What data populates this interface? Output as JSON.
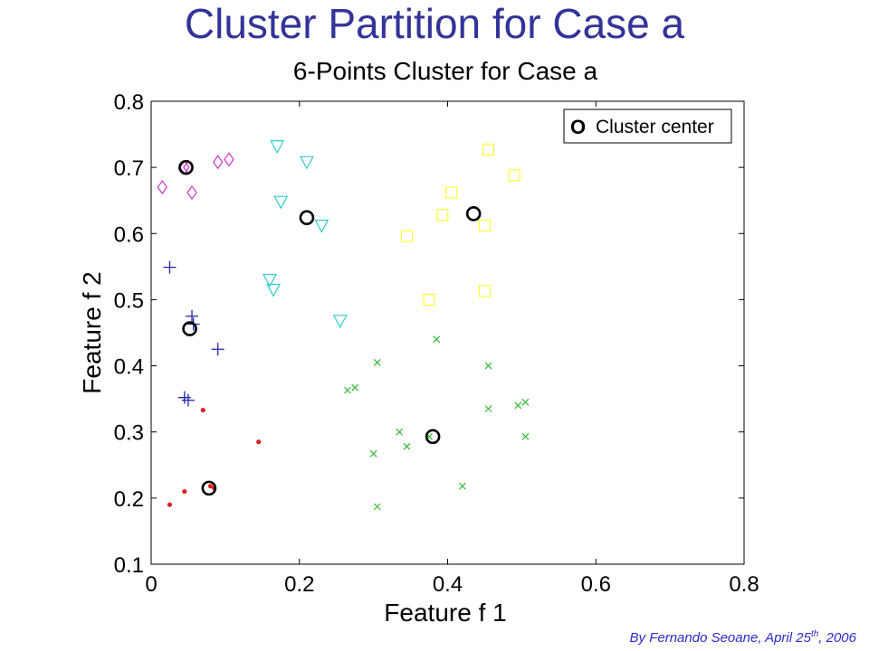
{
  "slide": {
    "title": "Cluster Partition for Case a",
    "credit_prefix": "By Fernando Seoane, April 25",
    "credit_sup": "th",
    "credit_suffix": ", 2006"
  },
  "chart_data": {
    "type": "scatter",
    "title": "6-Points Cluster for Case a",
    "xlabel": "Feature f 1",
    "ylabel": "Feature f 2",
    "xlim": [
      0,
      0.8
    ],
    "ylim": [
      0.1,
      0.8
    ],
    "xticks": [
      0,
      0.2,
      0.4,
      0.6,
      0.8
    ],
    "yticks": [
      0.1,
      0.2,
      0.3,
      0.4,
      0.5,
      0.6,
      0.7,
      0.8
    ],
    "grid": false,
    "legend": {
      "position": "top-right",
      "marker_label": "O",
      "label": "Cluster center"
    },
    "series": [
      {
        "marker": "diamond",
        "color": "#cc33cc",
        "x": [
          0.015,
          0.055,
          0.09,
          0.105,
          0.045,
          0.05
        ],
        "y": [
          0.67,
          0.662,
          0.708,
          0.712,
          0.7,
          0.7
        ]
      },
      {
        "marker": "triangle-down",
        "color": "#33cccc",
        "x": [
          0.17,
          0.175,
          0.21,
          0.23,
          0.16,
          0.165,
          0.255
        ],
        "y": [
          0.732,
          0.648,
          0.708,
          0.612,
          0.53,
          0.515,
          0.468
        ]
      },
      {
        "marker": "square",
        "color": "#ffff33",
        "x": [
          0.455,
          0.49,
          0.405,
          0.393,
          0.345,
          0.45,
          0.375,
          0.45
        ],
        "y": [
          0.727,
          0.688,
          0.662,
          0.628,
          0.596,
          0.612,
          0.5,
          0.513
        ]
      },
      {
        "marker": "plus",
        "color": "#2222aa",
        "x": [
          0.025,
          0.055,
          0.057,
          0.09,
          0.045,
          0.05
        ],
        "y": [
          0.549,
          0.475,
          0.463,
          0.425,
          0.352,
          0.348
        ]
      },
      {
        "marker": "x",
        "color": "#33bb33",
        "x": [
          0.385,
          0.455,
          0.305,
          0.265,
          0.275,
          0.455,
          0.495,
          0.505,
          0.505,
          0.335,
          0.345,
          0.375,
          0.3,
          0.42,
          0.305
        ],
        "y": [
          0.44,
          0.4,
          0.405,
          0.363,
          0.367,
          0.335,
          0.34,
          0.345,
          0.293,
          0.3,
          0.278,
          0.293,
          0.267,
          0.218,
          0.187
        ]
      },
      {
        "marker": "dot",
        "color": "#dd2222",
        "x": [
          0.07,
          0.145,
          0.045,
          0.08,
          0.085,
          0.025
        ],
        "y": [
          0.333,
          0.285,
          0.21,
          0.218,
          0.215,
          0.19
        ]
      }
    ],
    "centers": {
      "marker": "circle",
      "color": "#000000",
      "x": [
        0.047,
        0.21,
        0.435,
        0.052,
        0.38,
        0.078
      ],
      "y": [
        0.7,
        0.624,
        0.63,
        0.456,
        0.293,
        0.215
      ]
    }
  }
}
